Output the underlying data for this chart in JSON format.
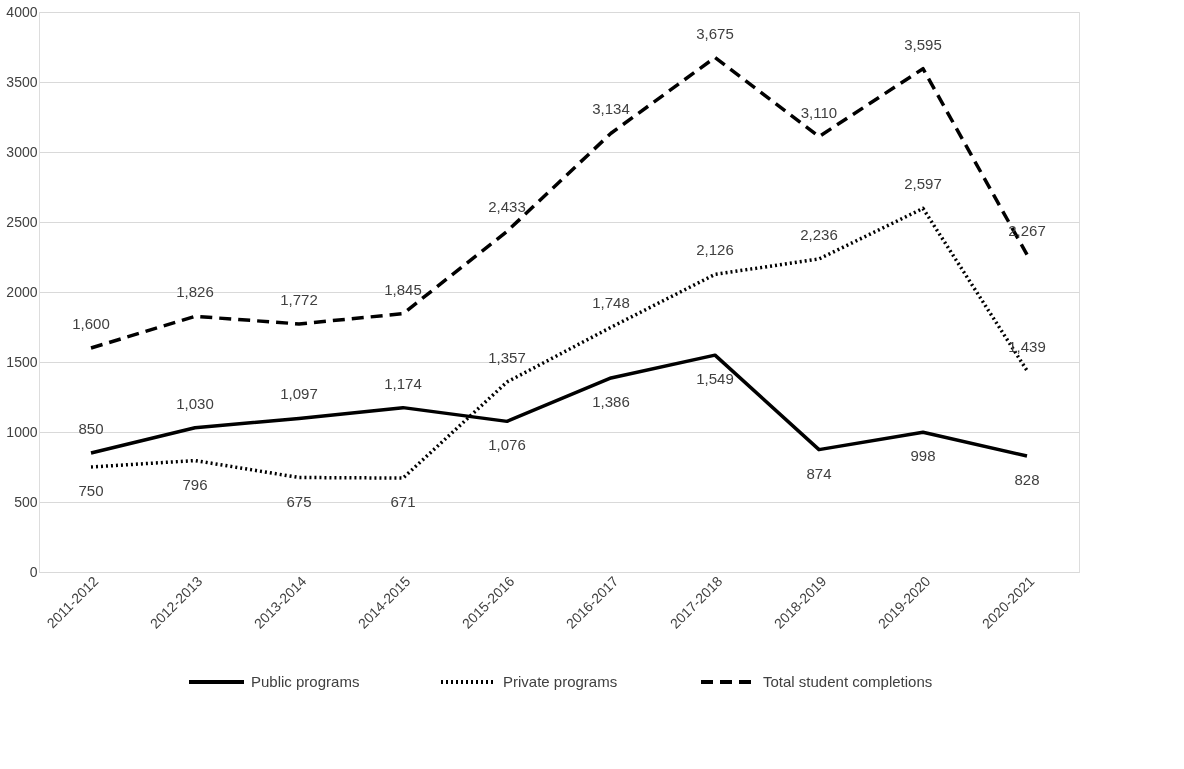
{
  "chart_data": {
    "type": "line",
    "categories": [
      "2011-2012",
      "2012-2013",
      "2013-2014",
      "2014-2015",
      "2015-2016",
      "2016-2017",
      "2017-2018",
      "2018-2019",
      "2019-2020",
      "2020-2021"
    ],
    "series": [
      {
        "name": "Public programs",
        "color": "#000000",
        "line_style": "solid",
        "values": [
          850,
          1030,
          1097,
          1174,
          1076,
          1386,
          1549,
          874,
          998,
          828
        ],
        "value_labels": [
          "850",
          "1,030",
          "1,097",
          "1,174",
          "1,076",
          "1,386",
          "1,549",
          "874",
          "998",
          "828"
        ]
      },
      {
        "name": "Private programs",
        "color": "#000000",
        "line_style": "dotted",
        "values": [
          750,
          796,
          675,
          671,
          1357,
          1748,
          2126,
          2236,
          2597,
          1439
        ],
        "value_labels": [
          "750",
          "796",
          "675",
          "671",
          "1,357",
          "1,748",
          "2,126",
          "2,236",
          "2,597",
          "1,439"
        ]
      },
      {
        "name": "Total student completions",
        "color": "#000000",
        "line_style": "dashed",
        "values": [
          1600,
          1826,
          1772,
          1845,
          2433,
          3134,
          3675,
          3110,
          3595,
          2267
        ],
        "value_labels": [
          "1,600",
          "1,826",
          "1,772",
          "1,845",
          "2,433",
          "3,134",
          "3,675",
          "3,110",
          "3,595",
          "2,267"
        ]
      }
    ],
    "ylim": [
      0,
      4000
    ],
    "yticks": [
      0,
      500,
      1000,
      1500,
      2000,
      2500,
      3000,
      3500,
      4000
    ],
    "grid": "y",
    "legend": "bottom",
    "marker": "none"
  }
}
